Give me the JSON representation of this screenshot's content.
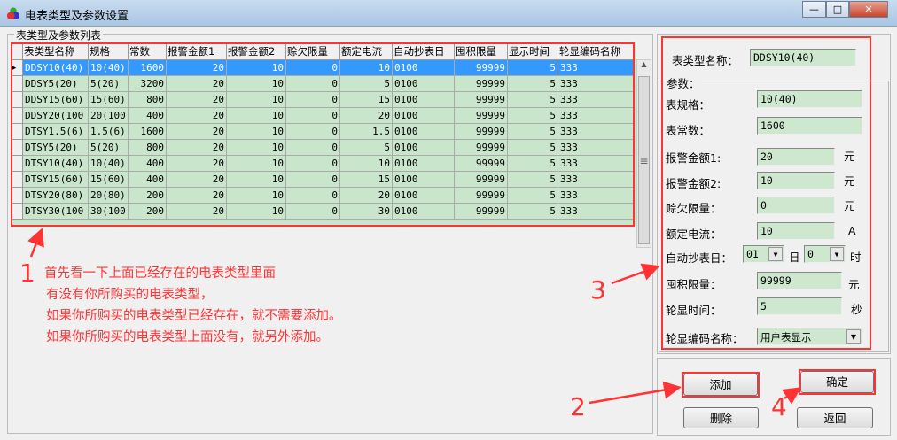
{
  "window": {
    "title": "电表类型及参数设置",
    "min": "—",
    "max": "□",
    "close": "✕"
  },
  "list": {
    "group_label": "表类型及参数列表",
    "columns": [
      "表类型名称",
      "规格",
      "常数",
      "报警金额1",
      "报警金额2",
      "赊欠限量",
      "额定电流",
      "自动抄表日",
      "囤积限量",
      "显示时间",
      "轮显编码名称"
    ],
    "rows": [
      [
        "DDSY10(40)",
        "10(40)",
        "1600",
        "20",
        "10",
        "0",
        "10",
        "0100",
        "99999",
        "5",
        "333"
      ],
      [
        "DDSY5(20)",
        "5(20)",
        "3200",
        "20",
        "10",
        "0",
        "5",
        "0100",
        "99999",
        "5",
        "333"
      ],
      [
        "DDSY15(60)",
        "15(60)",
        "800",
        "20",
        "10",
        "0",
        "15",
        "0100",
        "99999",
        "5",
        "333"
      ],
      [
        "DDSY20(100",
        "20(100",
        "400",
        "20",
        "10",
        "0",
        "20",
        "0100",
        "99999",
        "5",
        "333"
      ],
      [
        "DTSY1.5(6)",
        "1.5(6)",
        "1600",
        "20",
        "10",
        "0",
        "1.5",
        "0100",
        "99999",
        "5",
        "333"
      ],
      [
        "DTSY5(20)",
        "5(20)",
        "800",
        "20",
        "10",
        "0",
        "5",
        "0100",
        "99999",
        "5",
        "333"
      ],
      [
        "DTSY10(40)",
        "10(40)",
        "400",
        "20",
        "10",
        "0",
        "10",
        "0100",
        "99999",
        "5",
        "333"
      ],
      [
        "DTSY15(60)",
        "15(60)",
        "400",
        "20",
        "10",
        "0",
        "15",
        "0100",
        "99999",
        "5",
        "333"
      ],
      [
        "DTSY20(80)",
        "20(80)",
        "200",
        "20",
        "10",
        "0",
        "20",
        "0100",
        "99999",
        "5",
        "333"
      ],
      [
        "DTSY30(100",
        "30(100",
        "200",
        "20",
        "10",
        "0",
        "30",
        "0100",
        "99999",
        "5",
        "333"
      ]
    ],
    "selected_row": 0
  },
  "form": {
    "name_label": "表类型名称：",
    "name_value": "DDSY10(40)",
    "params_label": "参数：",
    "spec_label": "表规格：",
    "spec_value": "10(40)",
    "const_label": "表常数：",
    "const_value": "1600",
    "alarm1_label": "报警金额1:",
    "alarm1_value": "20",
    "alarm1_unit": "元",
    "alarm2_label": "报警金额2:",
    "alarm2_value": "10",
    "alarm2_unit": "元",
    "credit_label": "赊欠限量：",
    "credit_value": "0",
    "credit_unit": "元",
    "current_label": "额定电流：",
    "current_value": "10",
    "current_unit": "A",
    "auto_label": "自动抄表日：",
    "day_value": "01",
    "day_unit": "日",
    "hour_value": "0",
    "hour_unit": "时",
    "hoard_label": "囤积限量：",
    "hoard_value": "99999",
    "hoard_unit": "元",
    "disp_label": "轮显时间：",
    "disp_value": "5",
    "disp_unit": "秒",
    "code_label": "轮显编码名称：",
    "code_value": "用户表显示"
  },
  "buttons": {
    "add": "添加",
    "ok": "确定",
    "delete": "删除",
    "back": "返回"
  },
  "annotations": {
    "n1": "1",
    "n2": "2",
    "n3": "3",
    "n4": "4",
    "lines": [
      "首先看一下上面已经存在的电表类型里面",
      "有没有你所购买的电表类型，",
      "如果你所购买的电表类型已经存在，就不需要添加。",
      "如果你所购买的电表类型上面没有，就另外添加。"
    ]
  },
  "colors": {
    "grid_bg": "#c9e6cc",
    "selection": "#3399ff",
    "annotation": "#ff3333"
  }
}
